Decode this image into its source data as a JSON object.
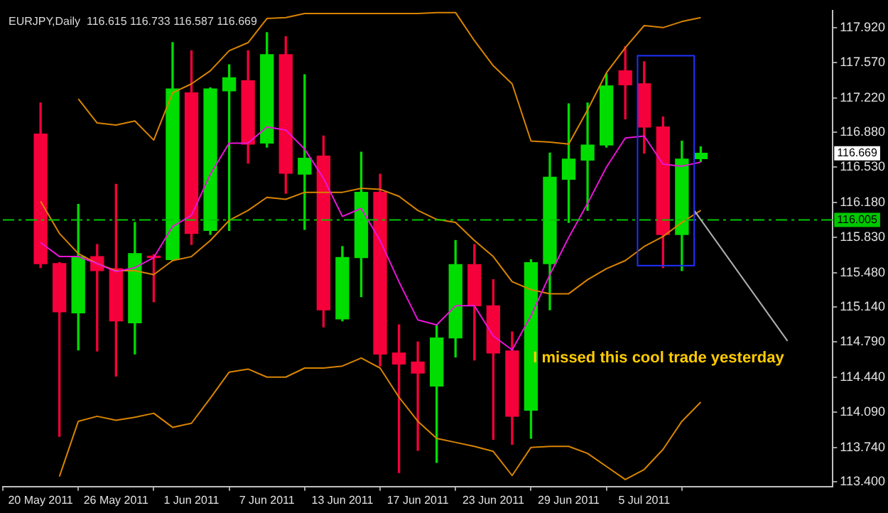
{
  "chart_data": {
    "type": "candlestick",
    "title": "EURJPY,Daily  116.615 116.733 116.587 116.669",
    "categories": [
      "20 May 2011",
      null,
      null,
      null,
      "26 May 2011",
      null,
      null,
      null,
      "1 Jun 2011",
      null,
      null,
      null,
      "7 Jun 2011",
      null,
      null,
      null,
      "13 Jun 2011",
      null,
      null,
      null,
      "17 Jun 2011",
      null,
      null,
      null,
      "23 Jun 2011",
      null,
      null,
      null,
      "29 Jun 2011",
      null,
      null,
      null,
      "5 Jul 2011",
      null,
      null,
      null
    ],
    "ohlc": [
      [
        116.86,
        117.17,
        115.53,
        115.57
      ],
      [
        115.57,
        115.58,
        113.85,
        115.09
      ],
      [
        115.08,
        116.16,
        114.71,
        115.64
      ],
      [
        115.64,
        115.76,
        114.7,
        115.5
      ],
      [
        115.52,
        116.36,
        114.45,
        115.0
      ],
      [
        114.98,
        115.98,
        114.67,
        115.67
      ],
      [
        115.64,
        115.66,
        115.19,
        115.63
      ],
      [
        115.61,
        117.77,
        115.6,
        117.31
      ],
      [
        117.27,
        117.69,
        115.76,
        115.87
      ],
      [
        115.9,
        117.32,
        115.86,
        117.31
      ],
      [
        117.29,
        117.55,
        115.9,
        117.42
      ],
      [
        117.39,
        117.69,
        116.57,
        116.76
      ],
      [
        116.77,
        117.87,
        116.73,
        117.65
      ],
      [
        117.65,
        117.83,
        116.27,
        116.47
      ],
      [
        116.46,
        117.45,
        115.91,
        116.62
      ],
      [
        116.64,
        116.84,
        114.94,
        115.11
      ],
      [
        115.02,
        115.74,
        115.0,
        115.63
      ],
      [
        115.63,
        116.68,
        115.24,
        116.28
      ],
      [
        116.28,
        116.46,
        114.55,
        114.67
      ],
      [
        114.68,
        114.96,
        113.49,
        114.57
      ],
      [
        114.59,
        114.79,
        113.71,
        114.48
      ],
      [
        114.35,
        114.96,
        113.59,
        114.83
      ],
      [
        114.83,
        115.8,
        114.64,
        115.56
      ],
      [
        115.56,
        115.76,
        114.61,
        115.15
      ],
      [
        115.15,
        115.41,
        113.82,
        114.68
      ],
      [
        114.7,
        114.89,
        113.77,
        114.05
      ],
      [
        114.11,
        115.61,
        113.83,
        115.58
      ],
      [
        115.57,
        116.67,
        115.11,
        116.43
      ],
      [
        116.41,
        117.16,
        115.98,
        116.61
      ],
      [
        116.6,
        117.17,
        116.1,
        116.75
      ],
      [
        116.75,
        117.46,
        116.73,
        117.34
      ],
      [
        117.49,
        117.73,
        117.01,
        117.35
      ],
      [
        117.36,
        117.58,
        116.67,
        116.93
      ],
      [
        116.93,
        117.03,
        115.53,
        115.86
      ],
      [
        115.86,
        116.79,
        115.5,
        116.61
      ],
      [
        116.615,
        116.733,
        116.587,
        116.669
      ]
    ],
    "colors": [
      "#f5003a",
      "#f5003a",
      "#00dd00",
      "#f5003a",
      "#f5003a",
      "#00dd00",
      "#f5003a",
      "#00dd00",
      "#f5003a",
      "#00dd00",
      "#00dd00",
      "#f5003a",
      "#00dd00",
      "#f5003a",
      "#00dd00",
      "#f5003a",
      "#00dd00",
      "#00dd00",
      "#f5003a",
      "#f5003a",
      "#f5003a",
      "#00dd00",
      "#00dd00",
      "#f5003a",
      "#f5003a",
      "#f5003a",
      "#00dd00",
      "#00dd00",
      "#00dd00",
      "#00dd00",
      "#00dd00",
      "#f5003a",
      "#f5003a",
      "#f5003a",
      "#00dd00",
      "#00dd00"
    ],
    "series": [
      {
        "type": "line",
        "color": "#e814d8",
        "values": [
          115.78,
          115.64,
          115.64,
          115.57,
          115.49,
          115.53,
          115.63,
          115.94,
          116.05,
          116.46,
          116.77,
          116.77,
          116.93,
          116.9,
          116.71,
          116.42,
          116.04,
          116.12,
          115.8,
          115.39,
          115.01,
          114.96,
          115.15,
          115.15,
          114.85,
          114.71,
          115.05,
          115.46,
          115.83,
          116.17,
          116.53,
          116.82,
          116.84,
          116.56,
          116.54,
          116.58
        ]
      },
      {
        "type": "line",
        "color": "#d88400",
        "values": [
          null,
          null,
          117.21,
          116.97,
          116.95,
          116.99,
          116.8,
          117.27,
          117.36,
          117.49,
          117.69,
          117.77,
          118.01,
          118.02,
          118.06,
          118.06,
          118.06,
          118.06,
          118.06,
          118.06,
          118.06,
          118.07,
          118.07,
          117.79,
          117.54,
          117.36,
          116.79,
          116.78,
          116.76,
          117.1,
          117.47,
          117.72,
          117.94,
          117.92,
          117.98,
          118.02
        ]
      },
      {
        "type": "line",
        "color": "#d88400",
        "values": [
          116.19,
          115.87,
          115.67,
          115.57,
          115.5,
          115.5,
          115.46,
          115.6,
          115.64,
          115.8,
          116.0,
          116.1,
          116.23,
          116.21,
          116.28,
          116.28,
          116.28,
          116.32,
          116.31,
          116.24,
          116.1,
          116.01,
          115.98,
          115.8,
          115.64,
          115.39,
          115.31,
          115.27,
          115.27,
          115.41,
          115.52,
          115.6,
          115.74,
          115.84,
          115.98,
          116.1
        ]
      },
      {
        "type": "line",
        "color": "#d88400",
        "values": [
          null,
          113.45,
          114.0,
          114.05,
          114.01,
          114.04,
          114.08,
          113.94,
          113.98,
          114.23,
          114.49,
          114.52,
          114.44,
          114.44,
          114.53,
          114.53,
          114.55,
          114.63,
          114.53,
          114.24,
          114.0,
          113.83,
          113.79,
          113.75,
          113.7,
          113.46,
          113.74,
          113.75,
          113.75,
          113.68,
          113.55,
          113.42,
          113.52,
          113.72,
          114.0,
          114.19
        ]
      }
    ],
    "ylim": [
      113.35,
      118.09
    ],
    "yticks": [
      {
        "value": 117.92,
        "label": "117.920"
      },
      {
        "value": 117.57,
        "label": "117.570"
      },
      {
        "value": 117.22,
        "label": "117.220"
      },
      {
        "value": 116.88,
        "label": "116.880"
      },
      {
        "value": 116.53,
        "label": "116.530"
      },
      {
        "value": 116.18,
        "label": "116.180"
      },
      {
        "value": 115.83,
        "label": "115.830"
      },
      {
        "value": 115.48,
        "label": "115.480"
      },
      {
        "value": 115.14,
        "label": "115.140"
      },
      {
        "value": 114.79,
        "label": "114.790"
      },
      {
        "value": 114.44,
        "label": "114.440"
      },
      {
        "value": 114.09,
        "label": "114.090"
      },
      {
        "value": 113.74,
        "label": "113.740"
      },
      {
        "value": 113.4,
        "label": "113.400"
      }
    ],
    "ref_lines": [
      {
        "axis": "y",
        "value": 116.005,
        "label": "116.005",
        "color": "#00c800",
        "line_style": "dashed"
      }
    ],
    "annotations": [
      "I missed this cool trade yesterday",
      "116.669"
    ],
    "grid": false,
    "legend": false,
    "marker": "none"
  }
}
